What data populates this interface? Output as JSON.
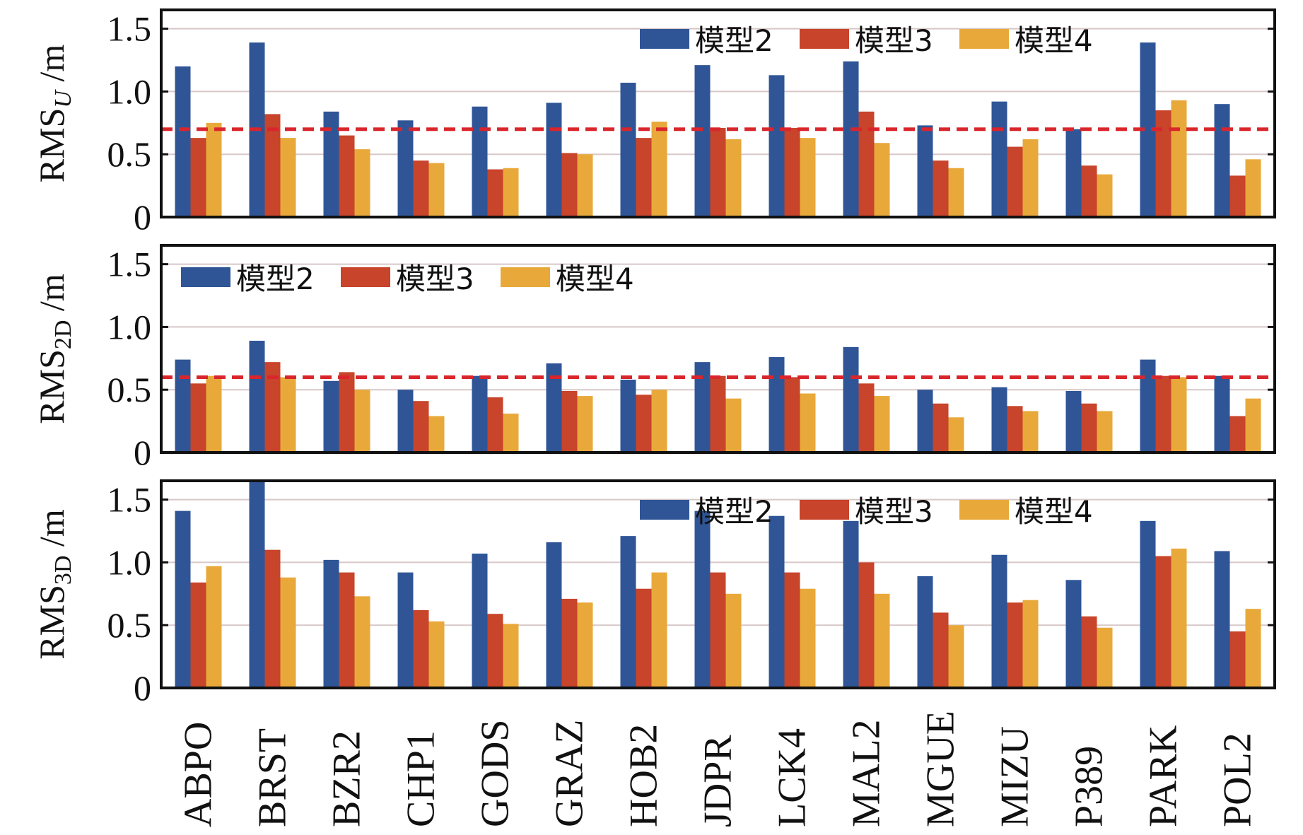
{
  "colors": {
    "model2": "#2f5597",
    "model3": "#c8442a",
    "model4": "#e8a93a",
    "threshold": "#d9262c",
    "grid": "#d8c8c8"
  },
  "chart_data": [
    {
      "type": "bar",
      "id": "U",
      "ylabel": {
        "main": "RMS",
        "sub": "U",
        "unit": "/m"
      },
      "ylim": [
        0,
        1.65
      ],
      "yticks": [
        "0",
        "0.5",
        "1.0",
        "1.5"
      ],
      "threshold": 0.7,
      "legend_position": "top-right",
      "categories": [
        "ABPO",
        "BRST",
        "BZR2",
        "CHP1",
        "GODS",
        "GRAZ",
        "HOB2",
        "JDPR",
        "LCK4",
        "MAL2",
        "MGUE",
        "MIZU",
        "P389",
        "PARK",
        "POL2"
      ],
      "series": [
        {
          "name": "模型2",
          "values": [
            1.2,
            1.39,
            0.84,
            0.77,
            0.88,
            0.91,
            1.07,
            1.21,
            1.13,
            1.24,
            0.73,
            0.92,
            0.7,
            1.39,
            0.9
          ]
        },
        {
          "name": "模型3",
          "values": [
            0.63,
            0.82,
            0.65,
            0.45,
            0.38,
            0.51,
            0.63,
            0.71,
            0.71,
            0.84,
            0.45,
            0.56,
            0.41,
            0.85,
            0.33
          ]
        },
        {
          "name": "模型4",
          "values": [
            0.75,
            0.63,
            0.54,
            0.43,
            0.39,
            0.5,
            0.76,
            0.62,
            0.63,
            0.59,
            0.39,
            0.62,
            0.34,
            0.93,
            0.46
          ]
        }
      ]
    },
    {
      "type": "bar",
      "id": "2D",
      "ylabel": {
        "main": "RMS",
        "sub": "2D",
        "unit": "/m"
      },
      "ylim": [
        0,
        1.65
      ],
      "yticks": [
        "0",
        "0.5",
        "1.0",
        "1.5"
      ],
      "threshold": 0.6,
      "legend_position": "top-left",
      "categories": [
        "ABPO",
        "BRST",
        "BZR2",
        "CHP1",
        "GODS",
        "GRAZ",
        "HOB2",
        "JDPR",
        "LCK4",
        "MAL2",
        "MGUE",
        "MIZU",
        "P389",
        "PARK",
        "POL2"
      ],
      "series": [
        {
          "name": "模型2",
          "values": [
            0.74,
            0.89,
            0.57,
            0.5,
            0.61,
            0.71,
            0.58,
            0.72,
            0.76,
            0.84,
            0.5,
            0.52,
            0.49,
            0.74,
            0.61
          ]
        },
        {
          "name": "模型3",
          "values": [
            0.55,
            0.72,
            0.64,
            0.41,
            0.44,
            0.49,
            0.46,
            0.61,
            0.6,
            0.55,
            0.39,
            0.37,
            0.39,
            0.61,
            0.29
          ]
        },
        {
          "name": "模型4",
          "values": [
            0.61,
            0.6,
            0.5,
            0.29,
            0.31,
            0.45,
            0.5,
            0.43,
            0.47,
            0.45,
            0.28,
            0.33,
            0.33,
            0.6,
            0.43
          ]
        }
      ]
    },
    {
      "type": "bar",
      "id": "3D",
      "ylabel": {
        "main": "RMS",
        "sub": "3D",
        "unit": "/m"
      },
      "ylim": [
        0,
        1.65
      ],
      "yticks": [
        "0",
        "0.5",
        "1.0",
        "1.5"
      ],
      "threshold": null,
      "legend_position": "top-right",
      "categories": [
        "ABPO",
        "BRST",
        "BZR2",
        "CHP1",
        "GODS",
        "GRAZ",
        "HOB2",
        "JDPR",
        "LCK4",
        "MAL2",
        "MGUE",
        "MIZU",
        "P389",
        "PARK",
        "POL2"
      ],
      "series": [
        {
          "name": "模型2",
          "values": [
            1.41,
            1.65,
            1.02,
            0.92,
            1.07,
            1.16,
            1.21,
            1.41,
            1.37,
            1.33,
            0.89,
            1.06,
            0.86,
            1.33,
            1.09
          ]
        },
        {
          "name": "模型3",
          "values": [
            0.84,
            1.1,
            0.92,
            0.62,
            0.59,
            0.71,
            0.79,
            0.92,
            0.92,
            1.0,
            0.6,
            0.68,
            0.57,
            1.05,
            0.45
          ]
        },
        {
          "name": "模型4",
          "values": [
            0.97,
            0.88,
            0.73,
            0.53,
            0.51,
            0.68,
            0.92,
            0.75,
            0.79,
            0.75,
            0.5,
            0.7,
            0.48,
            1.11,
            0.63
          ]
        }
      ]
    }
  ]
}
